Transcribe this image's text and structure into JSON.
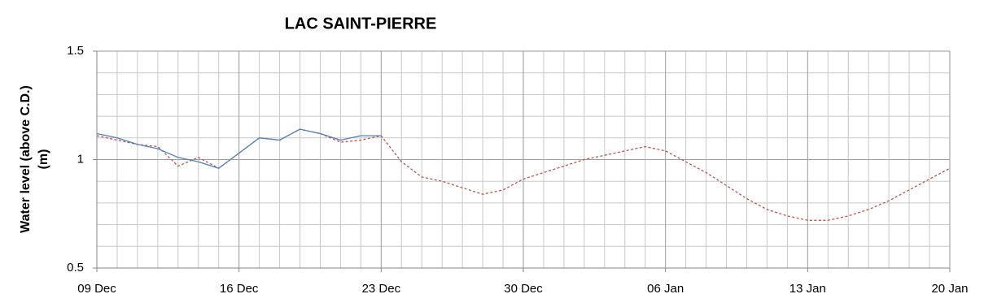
{
  "chart_data": {
    "type": "line",
    "title": "LAC SAINT-PIERRE",
    "ylabel": [
      "Water level (above C.D.)",
      "(m)"
    ],
    "categories": [
      "09 Dec",
      null,
      null,
      null,
      null,
      null,
      null,
      "16 Dec",
      null,
      null,
      null,
      null,
      null,
      null,
      "23 Dec",
      null,
      null,
      null,
      null,
      null,
      null,
      "30 Dec",
      null,
      null,
      null,
      null,
      null,
      null,
      "06 Jan",
      null,
      null,
      null,
      null,
      null,
      null,
      "13 Jan",
      null,
      null,
      null,
      null,
      null,
      null,
      "20 Jan"
    ],
    "series": [
      {
        "color": "#c0504d",
        "dashed": true,
        "values": [
          1.11,
          1.09,
          1.07,
          1.06,
          0.97,
          1.01,
          0.96,
          1.03,
          1.1,
          1.09,
          1.14,
          1.12,
          1.08,
          1.09,
          1.11,
          0.99,
          0.92,
          0.9,
          0.87,
          0.84,
          0.86,
          0.91,
          0.94,
          0.97,
          1.0,
          1.02,
          1.04,
          1.06,
          1.04,
          0.99,
          0.94,
          0.88,
          0.82,
          0.77,
          0.74,
          0.72,
          0.72,
          0.74,
          0.77,
          0.81,
          0.86,
          0.91,
          0.96
        ]
      },
      {
        "color": "#4f81bd",
        "dashed": false,
        "values": [
          1.12,
          1.1,
          1.07,
          1.05,
          1.01,
          0.99,
          0.96,
          1.03,
          1.1,
          1.09,
          1.14,
          1.12,
          1.09,
          1.11,
          1.11,
          null,
          null,
          null,
          null,
          null,
          null,
          null,
          null,
          null,
          null,
          null,
          null,
          null,
          null,
          null,
          null,
          null,
          null,
          null,
          null,
          null,
          null,
          null,
          null,
          null,
          null,
          null,
          null
        ]
      }
    ],
    "ylim": [
      0.5,
      1.5
    ],
    "yticks": [
      0.5,
      1,
      1.5
    ],
    "grid": true
  }
}
